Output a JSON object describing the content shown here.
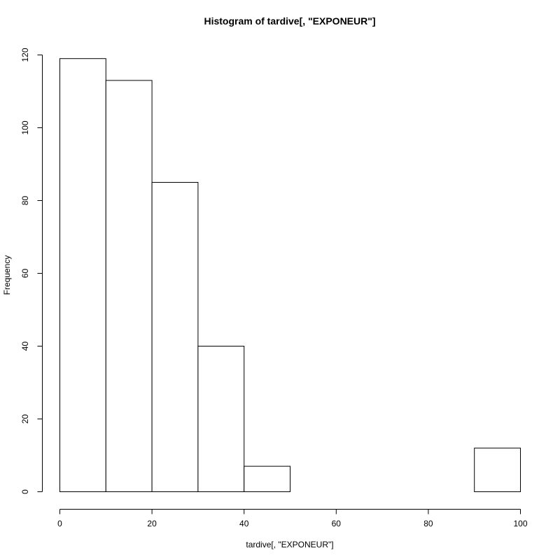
{
  "chart_data": {
    "type": "bar",
    "title": "Histogram of tardive[, \"EXPONEUR\"]",
    "xlabel": "tardive[, \"EXPONEUR\"]",
    "ylabel": "Frequency",
    "bin_edges": [
      0,
      10,
      20,
      30,
      40,
      50,
      60,
      70,
      80,
      90,
      100
    ],
    "values": [
      119,
      113,
      85,
      40,
      7,
      0,
      0,
      0,
      0,
      12
    ],
    "xlim": [
      0,
      100
    ],
    "ylim": [
      0,
      120
    ],
    "xticks": [
      0,
      20,
      40,
      60,
      80,
      100
    ],
    "yticks": [
      0,
      20,
      40,
      60,
      80,
      100,
      120
    ],
    "grid": false,
    "colors": {
      "bar_fill": "#ffffff",
      "bar_stroke": "#000000",
      "axis": "#000000"
    }
  }
}
